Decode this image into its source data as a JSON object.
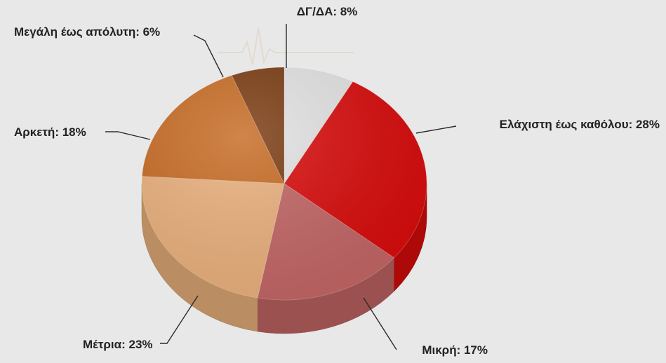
{
  "chart_data": {
    "type": "pie",
    "title": "",
    "slices": [
      {
        "label": "ΔΓ/ΔΑ",
        "value": 8,
        "display": "ΔΓ/ΔΑ: 8%",
        "color": "#e3e3e3"
      },
      {
        "label": "Ελάχιστη έως καθόλου",
        "value": 28,
        "display": "Ελάχιστη έως καθόλου: 28%",
        "color": "#d90b0b"
      },
      {
        "label": "Μικρή",
        "value": 17,
        "display": "Μικρή: 17%",
        "color": "#c36565"
      },
      {
        "label": "Μέτρια",
        "value": 23,
        "display": "Μέτρια: 23%",
        "color": "#eab07c"
      },
      {
        "label": "Αρκετή",
        "value": 18,
        "display": "Αρκετή: 18%",
        "color": "#c76a22"
      },
      {
        "label": "Μεγάλη έως απόλυτη",
        "value": 6,
        "display": "Μεγάλη έως απόλυτη: 6%",
        "color": "#7a3a10"
      }
    ],
    "unit": "%",
    "legend": "none"
  }
}
